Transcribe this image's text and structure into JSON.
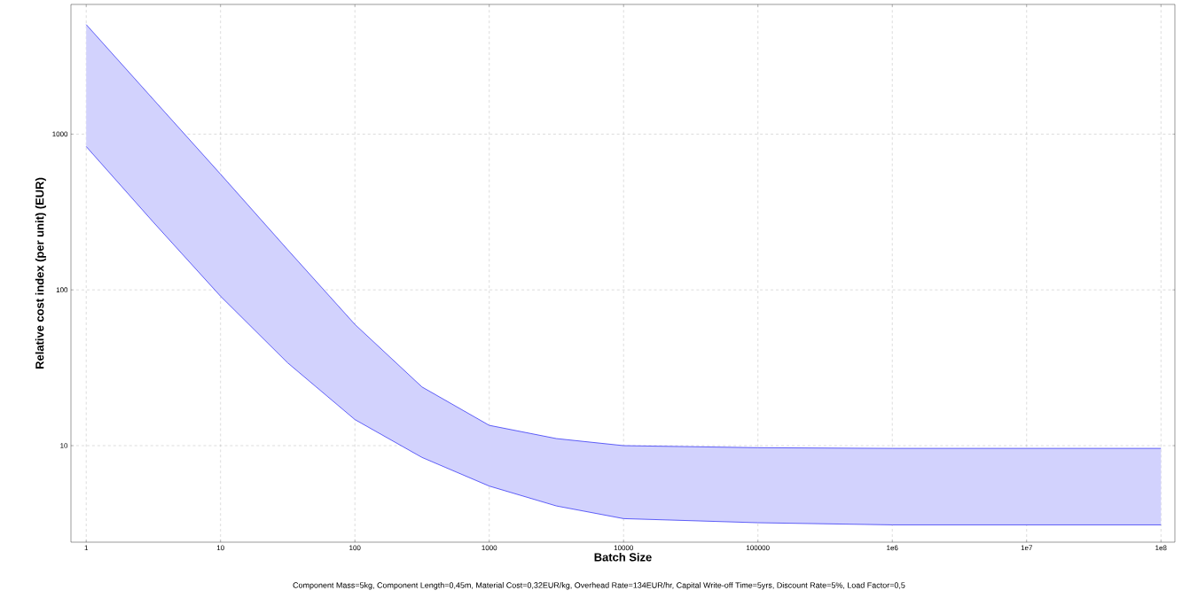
{
  "chart_data": {
    "type": "line",
    "xlabel": "Batch Size",
    "ylabel": "Relative cost index (per unit) (EUR)",
    "log": "xy",
    "grid": true,
    "xlim": [
      0.77,
      127000000
    ],
    "ylim": [
      2.4,
      6800
    ],
    "xticks": [
      1,
      10,
      100,
      1000,
      10000,
      100000,
      {
        "value": 1000000,
        "label": "1e6"
      },
      {
        "value": 10000000,
        "label": "1e7"
      },
      {
        "value": 100000000,
        "label": "1e8"
      }
    ],
    "yticks": [
      10,
      100,
      1000
    ],
    "annotations": [
      "Component Mass=5kg, Component Length=0,45m, Material Cost=0,32EUR/kg, Overhead Rate=134EUR/hr, Capital Write-off Time=5yrs, Discount Rate=5%, Load Factor=0,5"
    ],
    "x": [
      1,
      3.16,
      10,
      31.6,
      100,
      316,
      1000,
      3162,
      10000,
      100000,
      1000000,
      10000000,
      100000000
    ],
    "series": [
      {
        "color": "#3b3bf5",
        "values": [
          832,
          272,
          91,
          34,
          14.7,
          8.4,
          5.5,
          4.1,
          3.4,
          3.2,
          3.1,
          3.1,
          3.1
        ]
      },
      {
        "type": "area",
        "color": "#3b3bf5",
        "values": [
          5050,
          1670,
          553,
          181,
          60,
          23.8,
          13.5,
          11.1,
          10,
          9.7,
          9.6,
          9.6,
          9.6
        ]
      }
    ]
  }
}
